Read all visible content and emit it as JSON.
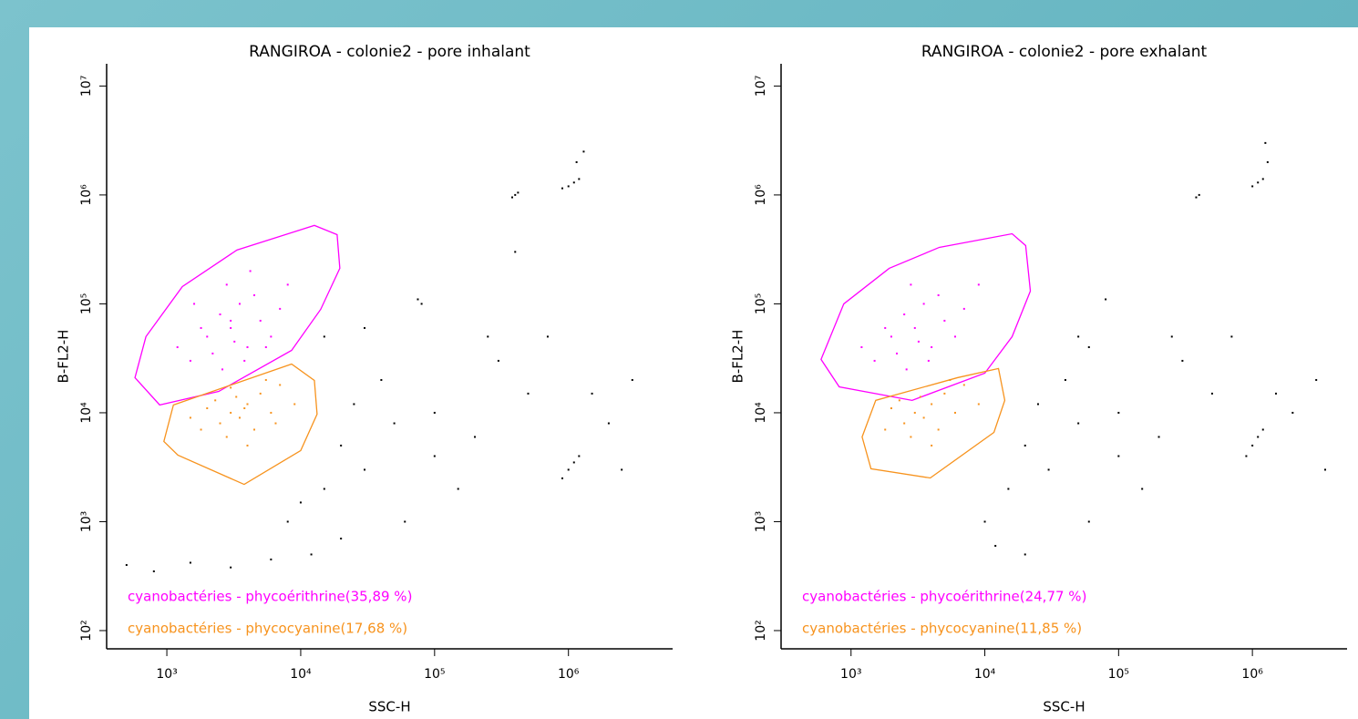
{
  "chart_data": [
    {
      "type": "scatter",
      "title": "RANGIROA - colonie2 - pore inhalant",
      "x_label": "SSC-H",
      "y_label": "B-FL2-H",
      "log_x": true,
      "log_y": true,
      "xlim": [
        355,
        6000000
      ],
      "ylim": [
        68,
        16000000
      ],
      "xticks": [
        {
          "value": 1000,
          "label": "10³"
        },
        {
          "value": 10000,
          "label": "10⁴"
        },
        {
          "value": 100000,
          "label": "10⁵"
        },
        {
          "value": 1000000,
          "label": "10⁶"
        }
      ],
      "yticks": [
        {
          "value": 100,
          "label": "10²"
        },
        {
          "value": 1000,
          "label": "10³"
        },
        {
          "value": 10000,
          "label": "10⁴"
        },
        {
          "value": 100000,
          "label": "10⁵"
        },
        {
          "value": 1000000,
          "label": "10⁶"
        },
        {
          "value": 10000000,
          "label": "10⁷"
        }
      ],
      "series": [
        {
          "name": "cyanobactéries - phycoérithrine(35,89 %)",
          "color": "#ff00ff",
          "x": [
            2000,
            3000,
            4000,
            2500,
            3500,
            5000,
            1500,
            6000,
            2200,
            3200,
            4500,
            2800,
            7000,
            1200,
            1800,
            3800,
            5500,
            2600,
            8000,
            4200,
            1600,
            3000
          ],
          "y": [
            50000,
            60000,
            40000,
            80000,
            100000,
            70000,
            30000,
            50000,
            35000,
            45000,
            120000,
            150000,
            90000,
            40000,
            60000,
            30000,
            40000,
            25000,
            150000,
            200000,
            100000,
            70000
          ],
          "gate": {
            "x": [
              578,
              698,
              1306,
              3340,
              12650,
              18700,
              19600,
              14100,
              8550,
              2440,
              884
            ],
            "y": [
              21000,
              50000,
              144000,
              312000,
              525000,
              432000,
              212000,
              89000,
              37400,
              15700,
              11800
            ]
          }
        },
        {
          "name": "cyanobactéries - phycocyanine(17,68 %)",
          "color": "#f7931e",
          "x": [
            3000,
            4000,
            2500,
            3500,
            5000,
            2000,
            6000,
            2800,
            4500,
            3300,
            7000,
            1800,
            5500,
            2300,
            4000,
            9000,
            3000,
            1500,
            6500,
            3800
          ],
          "y": [
            10000,
            12000,
            8000,
            9000,
            15000,
            11000,
            10000,
            6000,
            7000,
            14000,
            18000,
            7000,
            20000,
            13000,
            5000,
            12000,
            17000,
            9000,
            8000,
            11000
          ],
          "gate": {
            "x": [
              950,
              1120,
              8550,
              12650,
              13250,
              10000,
              3780,
              1210
            ],
            "y": [
              5450,
              11800,
              28000,
              19800,
              9700,
              4500,
              2200,
              4080
            ]
          }
        },
        {
          "color": "#000000",
          "x": [
            400000,
            380000,
            420000,
            1000000,
            1100000,
            900000,
            1200000,
            1150000,
            1300000,
            80000,
            75000,
            20000,
            30000,
            50000,
            100000,
            200000,
            500000,
            1000000,
            1100000,
            900000,
            1200000,
            15000,
            10000,
            40000,
            300000,
            2000000,
            3000000,
            60000,
            150000,
            25000,
            700000,
            8000,
            500,
            800,
            1500,
            3000,
            6000,
            12000,
            20000,
            400000,
            250000,
            1500000,
            100000,
            15000,
            30000,
            2500000
          ],
          "y": [
            1000000,
            950000,
            1050000,
            1200000,
            1300000,
            1150000,
            1400000,
            2000000,
            2500000,
            100000,
            110000,
            5000,
            3000,
            8000,
            10000,
            6000,
            15000,
            3000,
            3500,
            2500,
            4000,
            2000,
            1500,
            20000,
            30000,
            8000,
            20000,
            1000,
            2000,
            12000,
            50000,
            1000,
            400,
            350,
            420,
            380,
            450,
            500,
            700,
            300000,
            50000,
            15000,
            4000,
            50000,
            60000,
            3000
          ]
        }
      ]
    },
    {
      "type": "scatter",
      "title": "RANGIROA - colonie2 - pore exhalant",
      "x_label": "SSC-H",
      "y_label": "B-FL2-H",
      "log_x": true,
      "log_y": true,
      "xlim": [
        300,
        5100000
      ],
      "ylim": [
        68,
        16000000
      ],
      "xticks": [
        {
          "value": 1000,
          "label": "10³"
        },
        {
          "value": 10000,
          "label": "10⁴"
        },
        {
          "value": 100000,
          "label": "10⁵"
        },
        {
          "value": 1000000,
          "label": "10⁶"
        }
      ],
      "yticks": [
        {
          "value": 100,
          "label": "10²"
        },
        {
          "value": 1000,
          "label": "10³"
        },
        {
          "value": 10000,
          "label": "10⁴"
        },
        {
          "value": 100000,
          "label": "10⁵"
        },
        {
          "value": 1000000,
          "label": "10⁶"
        },
        {
          "value": 10000000,
          "label": "10⁷"
        }
      ],
      "series": [
        {
          "name": "cyanobactéries - phycoérithrine(24,77 %)",
          "color": "#ff00ff",
          "x": [
            2000,
            3000,
            4000,
            2500,
            3500,
            5000,
            1500,
            6000,
            2200,
            3200,
            4500,
            2800,
            7000,
            1200,
            1800,
            3800,
            9000,
            2600
          ],
          "y": [
            50000,
            60000,
            40000,
            80000,
            100000,
            70000,
            30000,
            50000,
            35000,
            45000,
            120000,
            150000,
            90000,
            40000,
            60000,
            30000,
            150000,
            25000
          ],
          "gate": {
            "x": [
              597,
              883,
              1930,
              4570,
              16000,
              20200,
              21900,
              16000,
              10000,
              2860,
              816
            ],
            "y": [
              30900,
              100000,
              212000,
              330000,
              440000,
              343000,
              131000,
              50000,
              23100,
              13000,
              17300
            ]
          }
        },
        {
          "name": "cyanobactéries - phycocyanine(11,85 %)",
          "color": "#f7931e",
          "x": [
            3000,
            4000,
            2500,
            3500,
            5000,
            2000,
            6000,
            2800,
            4500,
            3300,
            7000,
            1800,
            5500,
            2300,
            4000,
            9000
          ],
          "y": [
            10000,
            12000,
            8000,
            9000,
            15000,
            11000,
            10000,
            6000,
            7000,
            14000,
            18000,
            7000,
            20000,
            13000,
            5000,
            12000
          ],
          "gate": {
            "x": [
              1210,
              1530,
              6250,
              12650,
              14100,
              11700,
              3910,
              1410
            ],
            "y": [
              6000,
              13000,
              21000,
              25500,
              13000,
              6600,
              2520,
              3060
            ]
          }
        },
        {
          "color": "#000000",
          "x": [
            400000,
            380000,
            1000000,
            1100000,
            1200000,
            1300000,
            1250000,
            80000,
            20000,
            30000,
            50000,
            100000,
            200000,
            500000,
            1000000,
            1100000,
            900000,
            1200000,
            15000,
            10000,
            40000,
            300000,
            2000000,
            3000000,
            60000,
            150000,
            25000,
            700000,
            12000,
            20000,
            250000,
            1500000,
            100000,
            50000,
            60000,
            3500000
          ],
          "y": [
            1000000,
            950000,
            1200000,
            1300000,
            1400000,
            2000000,
            3000000,
            110000,
            5000,
            3000,
            8000,
            10000,
            6000,
            15000,
            5000,
            6000,
            4000,
            7000,
            2000,
            1000,
            20000,
            30000,
            10000,
            20000,
            1000,
            2000,
            12000,
            50000,
            600,
            500,
            50000,
            15000,
            4000,
            50000,
            40000,
            3000
          ]
        }
      ]
    }
  ]
}
